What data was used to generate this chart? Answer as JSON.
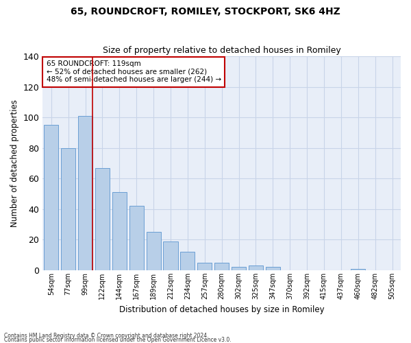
{
  "title1": "65, ROUNDCROFT, ROMILEY, STOCKPORT, SK6 4HZ",
  "title2": "Size of property relative to detached houses in Romiley",
  "xlabel": "Distribution of detached houses by size in Romiley",
  "ylabel": "Number of detached properties",
  "bar_labels": [
    "54sqm",
    "77sqm",
    "99sqm",
    "122sqm",
    "144sqm",
    "167sqm",
    "189sqm",
    "212sqm",
    "234sqm",
    "257sqm",
    "280sqm",
    "302sqm",
    "325sqm",
    "347sqm",
    "370sqm",
    "392sqm",
    "415sqm",
    "437sqm",
    "460sqm",
    "482sqm",
    "505sqm"
  ],
  "bar_values": [
    95,
    80,
    101,
    67,
    51,
    42,
    25,
    19,
    12,
    5,
    5,
    2,
    3,
    2,
    0,
    0,
    0,
    0,
    1,
    0,
    0
  ],
  "bar_color": "#b8cfe8",
  "bar_edge_color": "#6a9fd4",
  "vline_color": "#c00000",
  "annotation_text": "65 ROUNDCROFT: 119sqm\n← 52% of detached houses are smaller (262)\n48% of semi-detached houses are larger (244) →",
  "annotation_box_color": "#ffffff",
  "annotation_box_edge_color": "#c00000",
  "ylim": [
    0,
    140
  ],
  "yticks": [
    0,
    20,
    40,
    60,
    80,
    100,
    120,
    140
  ],
  "grid_color": "#c8d4e8",
  "bg_color": "#e8eef8",
  "footer1": "Contains HM Land Registry data © Crown copyright and database right 2024.",
  "footer2": "Contains public sector information licensed under the Open Government Licence v3.0."
}
